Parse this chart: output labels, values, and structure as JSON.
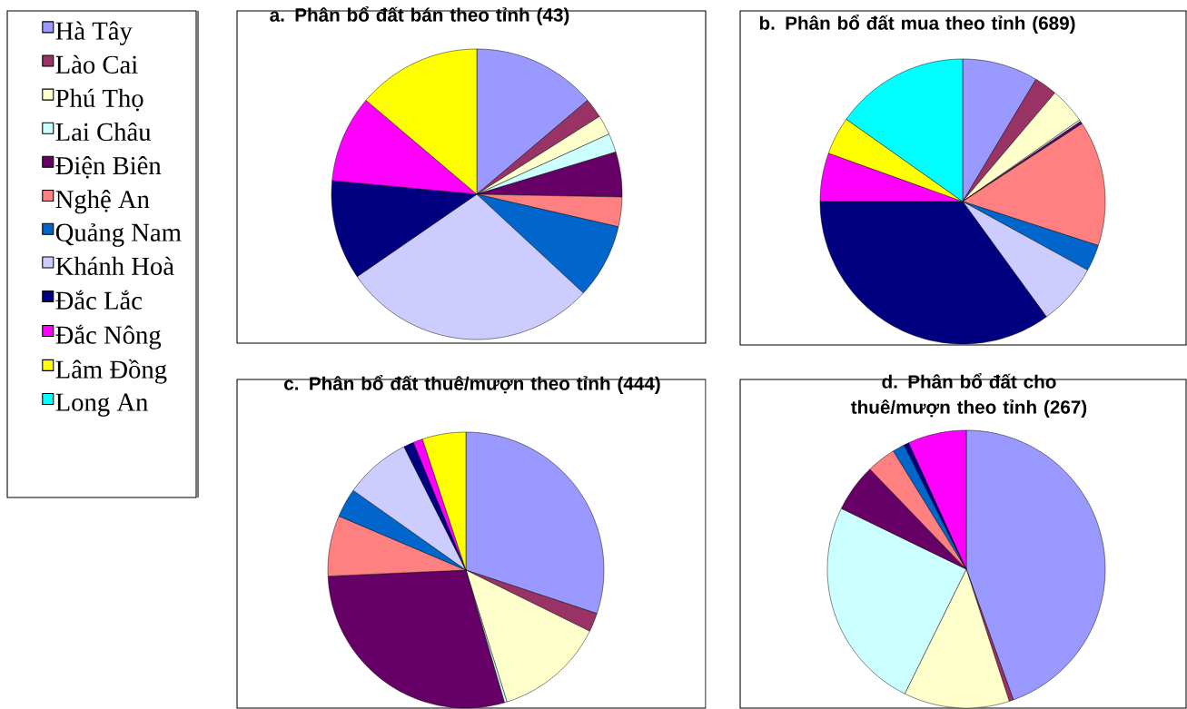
{
  "chart_data": [
    {
      "type": "pie",
      "title": "a. Phân bổ đất bán theo tỉnh (43)",
      "legend": "left",
      "categories": [
        "Hà Tây",
        "Lào Cai",
        "Phú Thọ",
        "Lai Châu",
        "Điện Biên",
        "Nghệ An",
        "Quảng Nam",
        "Khánh Hoà",
        "Đắc Lắc",
        "Đắc Nông",
        "Lâm Đồng",
        "Long An"
      ],
      "values": [
        13.8,
        2.2,
        2.2,
        2.1,
        5.0,
        3.3,
        8.3,
        28.5,
        11.1,
        9.7,
        13.8,
        0
      ],
      "colors": [
        "#9999ff",
        "#993366",
        "#ffffcc",
        "#ccffff",
        "#660066",
        "#ff8080",
        "#0066cc",
        "#ccccff",
        "#000080",
        "#ff00ff",
        "#ffff00",
        "#00ffff"
      ]
    },
    {
      "type": "pie",
      "title": "b. Phân bổ đất mua theo tỉnh (689)",
      "values": [
        8.6,
        2.6,
        4.1,
        0.2,
        0.3,
        14.2,
        3.0,
        7.0,
        35.0,
        5.5,
        4.3,
        15.2
      ],
      "colors": [
        "#9999ff",
        "#993366",
        "#ffffcc",
        "#ccffff",
        "#660066",
        "#ff8080",
        "#0066cc",
        "#ccccff",
        "#000080",
        "#ff00ff",
        "#ffff00",
        "#00ffff"
      ]
    },
    {
      "type": "pie",
      "title": "c. Phân bổ đất thuê/mượn theo tỉnh (444)",
      "values": [
        30.1,
        2.2,
        12.9,
        0.3,
        28.8,
        7.1,
        3.4,
        7.8,
        1.2,
        1.1,
        5.1,
        0
      ],
      "colors": [
        "#9999ff",
        "#993366",
        "#ffffcc",
        "#ccffff",
        "#660066",
        "#ff8080",
        "#0066cc",
        "#ccccff",
        "#000080",
        "#ff00ff",
        "#ffff00",
        "#00ffff"
      ]
    },
    {
      "type": "pie",
      "title": "d. Phân bổ đất cho thuê/mượn theo tỉnh (267)",
      "values": [
        44.5,
        0.5,
        12.3,
        24.9,
        5.6,
        3.4,
        1.4,
        0,
        0.6,
        6.8,
        0,
        0
      ],
      "colors": [
        "#9999ff",
        "#993366",
        "#ffffcc",
        "#ccffff",
        "#660066",
        "#ff8080",
        "#0066cc",
        "#ccccff",
        "#000080",
        "#ff00ff",
        "#ffff00",
        "#00ffff"
      ]
    }
  ]
}
